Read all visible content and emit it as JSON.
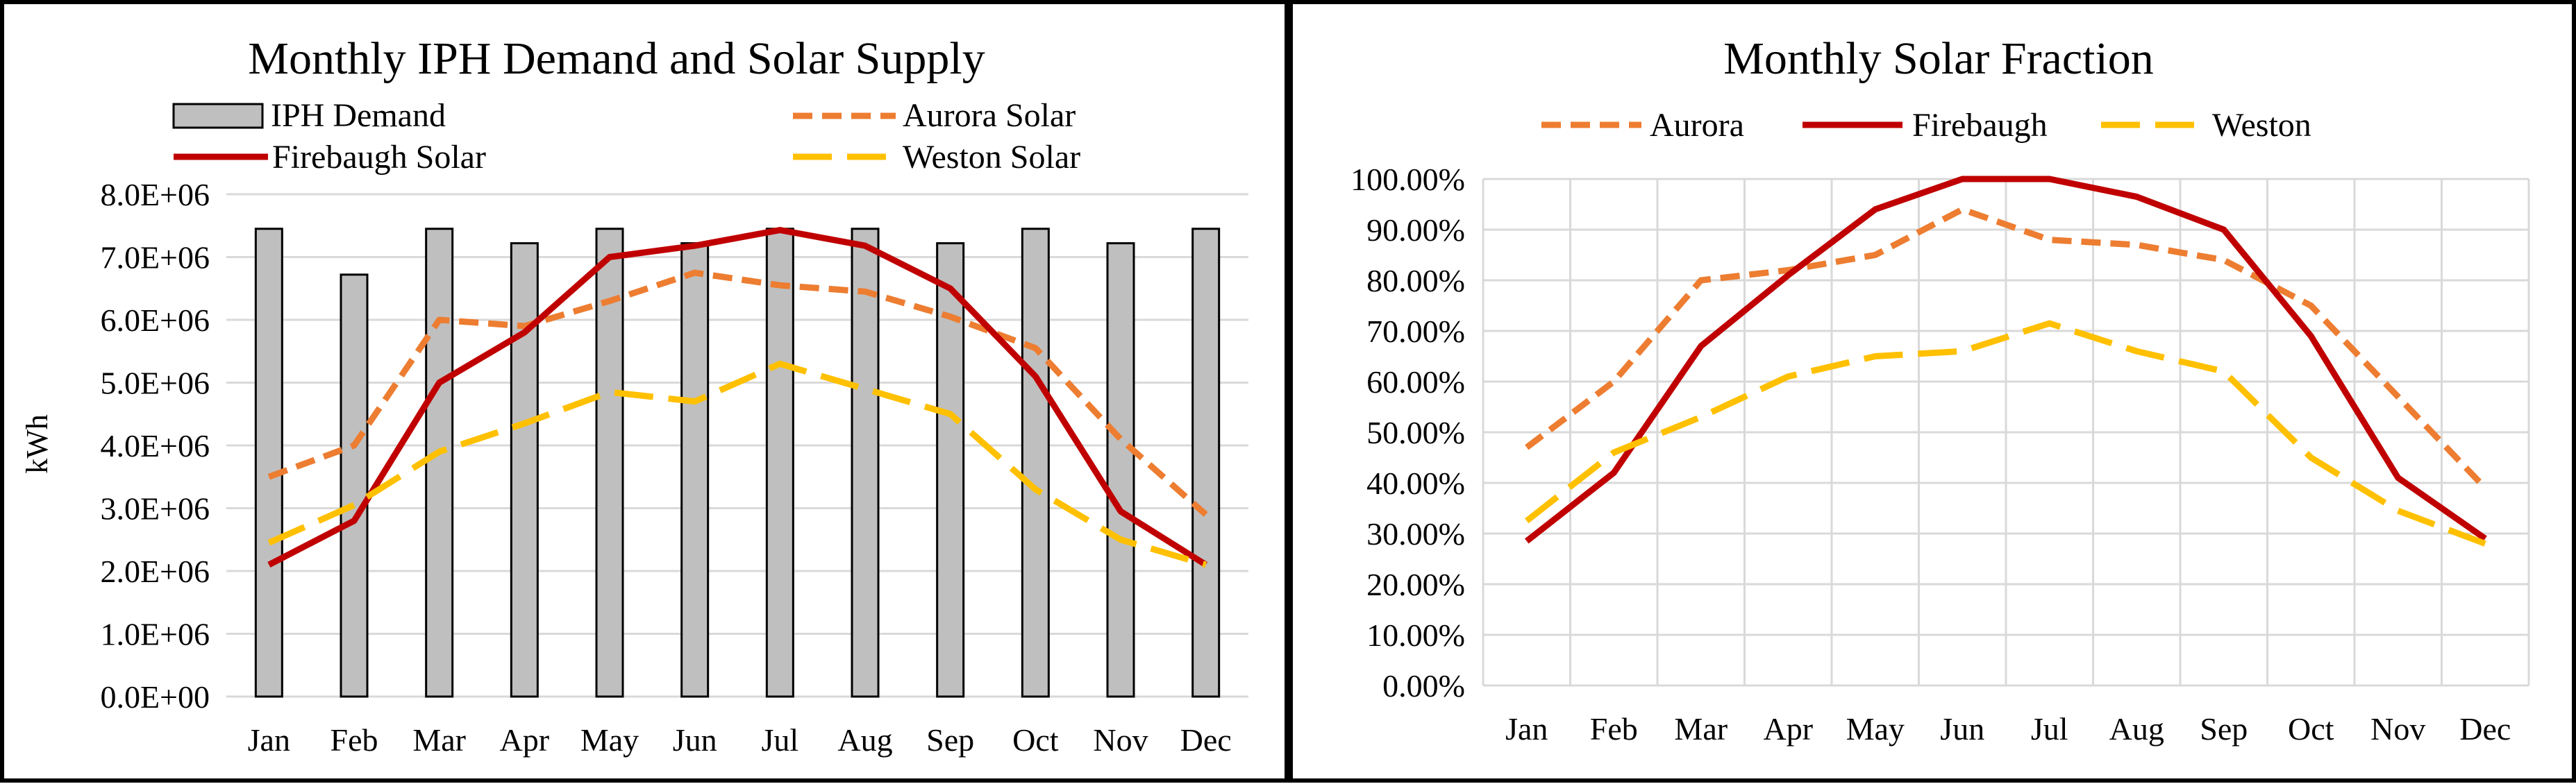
{
  "colors": {
    "demand_fill": "#bfbfbf",
    "demand_edge": "#000000",
    "aurora": "#ed7d31",
    "firebaugh": "#c00000",
    "weston": "#ffc000",
    "grid": "#d9d9d9"
  },
  "chart_data": [
    {
      "type": "bar",
      "title": "Monthly IPH Demand and Solar Supply",
      "xlabel": "",
      "ylabel": "kWh",
      "ylim": [
        0,
        8000000
      ],
      "yticks": [
        "0.0E+00",
        "1.0E+06",
        "2.0E+06",
        "3.0E+06",
        "4.0E+06",
        "5.0E+06",
        "6.0E+06",
        "7.0E+06",
        "8.0E+06"
      ],
      "categories": [
        "Jan",
        "Feb",
        "Mar",
        "Apr",
        "May",
        "Jun",
        "Jul",
        "Aug",
        "Sep",
        "Oct",
        "Nov",
        "Dec"
      ],
      "grid": "horizontal",
      "legend_position": "top",
      "series": [
        {
          "name": "IPH Demand",
          "kind": "bar",
          "color": "#bfbfbf",
          "values": [
            7450000,
            6720000,
            7450000,
            7220000,
            7450000,
            7220000,
            7450000,
            7450000,
            7220000,
            7450000,
            7220000,
            7450000
          ]
        },
        {
          "name": "Aurora Solar",
          "kind": "line",
          "style": "dash",
          "color": "#ed7d31",
          "values": [
            3500000,
            4000000,
            6000000,
            5900000,
            6300000,
            6750000,
            6550000,
            6450000,
            6050000,
            5550000,
            4100000,
            2900000
          ]
        },
        {
          "name": "Firebaugh Solar",
          "kind": "line",
          "style": "solid",
          "color": "#c00000",
          "values": [
            2100000,
            2800000,
            5000000,
            5800000,
            7000000,
            7180000,
            7430000,
            7180000,
            6500000,
            5100000,
            2950000,
            2100000
          ]
        },
        {
          "name": "Weston Solar",
          "kind": "line",
          "style": "longdash",
          "color": "#ffc000",
          "values": [
            2450000,
            3050000,
            3900000,
            4350000,
            4850000,
            4700000,
            5300000,
            4900000,
            4500000,
            3300000,
            2500000,
            2100000
          ]
        }
      ]
    },
    {
      "type": "line",
      "title": "Monthly Solar Fraction",
      "xlabel": "",
      "ylabel": "",
      "ylim": [
        0,
        100
      ],
      "yticks": [
        "0.00%",
        "10.00%",
        "20.00%",
        "30.00%",
        "40.00%",
        "50.00%",
        "60.00%",
        "70.00%",
        "80.00%",
        "90.00%",
        "100.00%"
      ],
      "categories": [
        "Jan",
        "Feb",
        "Mar",
        "Apr",
        "May",
        "Jun",
        "Jul",
        "Aug",
        "Sep",
        "Oct",
        "Nov",
        "Dec"
      ],
      "grid": "both",
      "legend_position": "top",
      "series": [
        {
          "name": "Aurora",
          "style": "dash",
          "color": "#ed7d31",
          "values": [
            47,
            60,
            80,
            82,
            85,
            94,
            88,
            87,
            84,
            75,
            57,
            39
          ]
        },
        {
          "name": "Firebaugh",
          "style": "solid",
          "color": "#c00000",
          "values": [
            28.5,
            42,
            67,
            81,
            94,
            100,
            100,
            96.5,
            90,
            69,
            41,
            29
          ]
        },
        {
          "name": "Weston",
          "style": "longdash",
          "color": "#ffc000",
          "values": [
            32.5,
            46,
            53,
            61,
            65,
            66,
            71.5,
            66,
            62,
            45,
            34.5,
            28
          ]
        }
      ]
    }
  ]
}
